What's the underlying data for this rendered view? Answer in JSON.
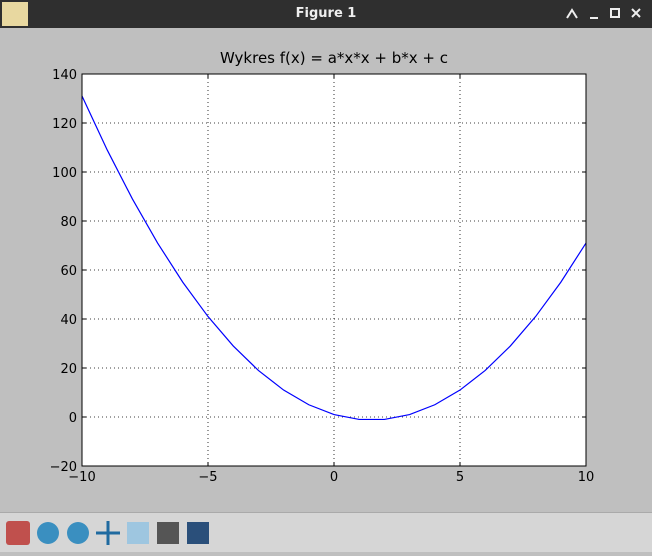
{
  "window": {
    "title": "Figure 1"
  },
  "chart_data": {
    "type": "line",
    "title": "Wykres f(x) =  a*x*x + b*x + c",
    "x": [
      -10,
      -9,
      -8,
      -7,
      -6,
      -5,
      -4,
      -3,
      -2,
      -1,
      0,
      1,
      2,
      3,
      4,
      5,
      6,
      7,
      8,
      9,
      10
    ],
    "series": [
      {
        "color": "#0000ff",
        "values": [
          131,
          109,
          89,
          71,
          55,
          41,
          29,
          19,
          11,
          5,
          1,
          -1,
          -1,
          1,
          5,
          11,
          19,
          29,
          41,
          55,
          71
        ]
      }
    ],
    "xlim": [
      -10,
      10
    ],
    "ylim": [
      -20,
      140
    ],
    "xticks": [
      {
        "value": -10,
        "label": "−10"
      },
      {
        "value": -5,
        "label": "−5"
      },
      0,
      5,
      10
    ],
    "yticks": [
      {
        "value": -20,
        "label": "−20"
      },
      0,
      20,
      40,
      60,
      80,
      100,
      120,
      140
    ],
    "grid": true
  }
}
